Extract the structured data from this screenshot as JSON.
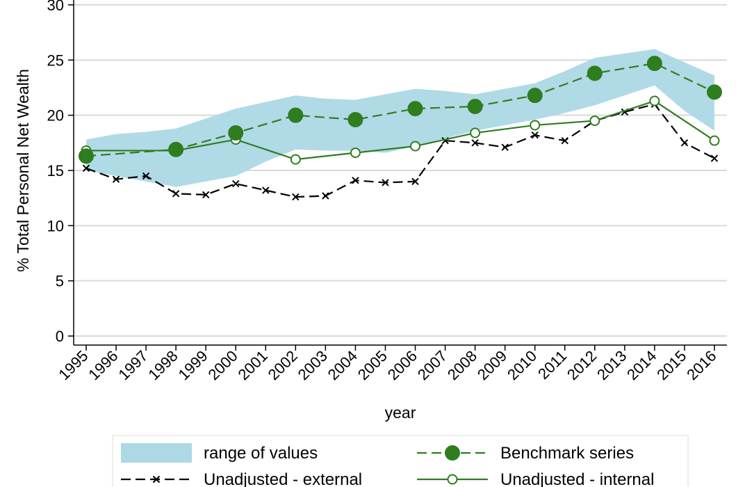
{
  "chart_data": {
    "type": "line",
    "xlabel": "year",
    "ylabel": "% Total Personal Net Wealth",
    "ylim": [
      0,
      30
    ],
    "yticks": [
      0,
      5,
      10,
      15,
      20,
      25,
      30
    ],
    "x": [
      1995,
      1996,
      1997,
      1998,
      1999,
      2000,
      2001,
      2002,
      2003,
      2004,
      2005,
      2006,
      2007,
      2008,
      2009,
      2010,
      2011,
      2012,
      2013,
      2014,
      2015,
      2016
    ],
    "grid": "horizontal",
    "legend_position": "bottom",
    "band": {
      "name": "range of values",
      "color": "#add8e6",
      "lower": [
        15.0,
        14.5,
        14.0,
        13.5,
        14.0,
        14.5,
        15.8,
        16.9,
        16.8,
        16.8,
        16.6,
        17.2,
        17.9,
        18.6,
        19.1,
        19.6,
        20.2,
        20.9,
        21.8,
        22.7,
        20.4,
        18.6
      ],
      "upper": [
        17.8,
        18.3,
        18.5,
        18.8,
        19.7,
        20.6,
        21.2,
        21.8,
        21.5,
        21.4,
        21.9,
        22.4,
        22.2,
        21.9,
        22.4,
        22.9,
        24.0,
        25.2,
        25.6,
        26.0,
        24.8,
        23.6
      ]
    },
    "series": [
      {
        "name": "Benchmark series",
        "color": "#2e7d1f",
        "style": "dashed",
        "marker": "filled-circle",
        "x": [
          1995,
          1998,
          2000,
          2002,
          2004,
          2006,
          2008,
          2010,
          2012,
          2014,
          2016
        ],
        "values": [
          16.3,
          16.9,
          18.4,
          20.0,
          19.6,
          20.6,
          20.8,
          21.8,
          23.8,
          24.7,
          22.1
        ]
      },
      {
        "name": "Unadjusted - internal",
        "color": "#2e7d1f",
        "style": "solid",
        "marker": "hollow-circle",
        "x": [
          1995,
          1998,
          2000,
          2002,
          2004,
          2006,
          2008,
          2010,
          2012,
          2014,
          2016
        ],
        "values": [
          16.8,
          16.8,
          17.8,
          16.0,
          16.6,
          17.2,
          18.4,
          19.1,
          19.5,
          21.3,
          17.7
        ]
      },
      {
        "name": "Unadjusted - external",
        "color": "#000000",
        "style": "dashed",
        "marker": "x",
        "x": [
          1995,
          1996,
          1997,
          1998,
          1999,
          2000,
          2001,
          2002,
          2003,
          2004,
          2005,
          2006,
          2007,
          2008,
          2009,
          2010,
          2011,
          2012,
          2013,
          2014,
          2015,
          2016
        ],
        "values": [
          15.2,
          14.2,
          14.5,
          12.9,
          12.8,
          13.8,
          13.2,
          12.6,
          12.7,
          14.1,
          13.9,
          14.0,
          17.7,
          17.5,
          17.1,
          18.2,
          17.7,
          19.5,
          20.3,
          21.0,
          17.5,
          16.1
        ]
      }
    ]
  }
}
